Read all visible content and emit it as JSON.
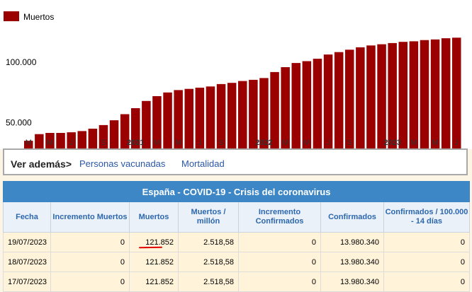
{
  "chart_data": {
    "type": "bar",
    "legend": "Muertos",
    "bar_color": "#9b0000",
    "y_ticks": [
      {
        "label": "100.000",
        "value": 100000
      },
      {
        "label": "50.000",
        "value": 50000
      }
    ],
    "ylim": [
      28000,
      140000
    ],
    "categories": [
      "2020-03",
      "2020-04",
      "2020-05",
      "2020-06",
      "2020-07",
      "2020-08",
      "2020-09",
      "2020-10",
      "2020-11",
      "2020-12",
      "2021-01",
      "2021-02",
      "2021-03",
      "2021-04",
      "2021-05",
      "2021-06",
      "2021-07",
      "2021-08",
      "2021-09",
      "2021-10",
      "2021-11",
      "2021-12",
      "2022-01",
      "2022-02",
      "2022-03",
      "2022-04",
      "2022-05",
      "2022-06",
      "2022-07",
      "2022-08",
      "2022-09",
      "2022-10",
      "2022-11",
      "2022-12",
      "2023-01",
      "2023-02",
      "2023-03",
      "2023-04",
      "2023-05",
      "2023-06",
      "2023-07"
    ],
    "values": [
      35000,
      40500,
      41500,
      41500,
      42000,
      43000,
      45000,
      48000,
      52000,
      57000,
      62000,
      68000,
      72000,
      75000,
      77000,
      78000,
      79000,
      80000,
      82000,
      83000,
      84500,
      85500,
      87000,
      92000,
      96000,
      99500,
      101000,
      103000,
      106500,
      108500,
      110500,
      112500,
      114000,
      115000,
      116000,
      117000,
      117500,
      118500,
      119000,
      120000,
      120500
    ],
    "x_ticks": [
      {
        "label": "M",
        "i": 0
      },
      {
        "label": "M",
        "i": 2
      },
      {
        "label": "J",
        "i": 4
      },
      {
        "label": "S",
        "i": 7
      },
      {
        "label": "2021",
        "i": 10
      },
      {
        "label": "M",
        "i": 12
      },
      {
        "label": "M",
        "i": 14
      },
      {
        "label": "J",
        "i": 16
      },
      {
        "label": "S",
        "i": 18
      },
      {
        "label": "2022",
        "i": 22
      },
      {
        "label": "M",
        "i": 24
      },
      {
        "label": "M",
        "i": 26
      },
      {
        "label": "J",
        "i": 28
      },
      {
        "label": "S",
        "i": 30
      },
      {
        "label": "2023",
        "i": 34
      },
      {
        "label": "M",
        "i": 36
      },
      {
        "label": "M",
        "i": 38
      },
      {
        "label": "J",
        "i": 40
      }
    ]
  },
  "see_also": {
    "label": "Ver además>",
    "links": [
      "Personas vacunadas",
      "Mortalidad"
    ]
  },
  "table": {
    "caption": "España - COVID-19 - Crisis del coronavirus",
    "headers": [
      "Fecha",
      "Incremento Muertos",
      "Muertos",
      "Muertos / millón",
      "Incremento Confirmados",
      "Confirmados",
      "Confirmados / 100.000 - 14 días"
    ],
    "rows": [
      [
        "19/07/2023",
        "0",
        "121.852",
        "2.518,58",
        "0",
        "13.980.340",
        "0"
      ],
      [
        "18/07/2023",
        "0",
        "121.852",
        "2.518,58",
        "0",
        "13.980.340",
        "0"
      ],
      [
        "17/07/2023",
        "0",
        "121.852",
        "2.518,58",
        "0",
        "13.980.340",
        "0"
      ]
    ],
    "colors": {
      "header_bg": "#3d87c7",
      "header_text": "#2d67ad",
      "row_bg": "#fff3da",
      "highlight": "#e00000"
    }
  }
}
